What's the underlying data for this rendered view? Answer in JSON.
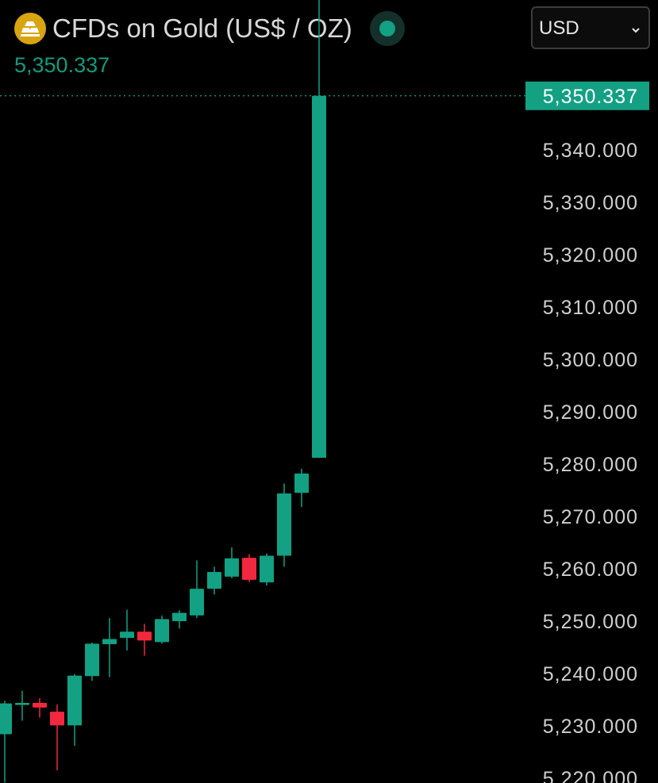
{
  "instrument": {
    "title": "CFDs on Gold (US$ / OZ)",
    "icon": "gold-bars-icon",
    "current_price": "5,350.337",
    "status": "market-open-dot"
  },
  "currency": {
    "selected": "USD"
  },
  "colors": {
    "up": "#13a083",
    "down": "#f2283f",
    "background": "#000000",
    "axis_text": "#cfcfcf",
    "gold": "#d9a412"
  },
  "chart_data": {
    "type": "candlestick",
    "price_axis": {
      "ticks": [
        5340,
        5330,
        5320,
        5310,
        5300,
        5290,
        5280,
        5270,
        5260,
        5250,
        5240,
        5230,
        5220
      ],
      "tick_labels": [
        "5,340.000",
        "5,330.000",
        "5,320.000",
        "5,310.000",
        "5,300.000",
        "5,290.000",
        "5,280.000",
        "5,270.000",
        "5,260.000",
        "5,250.000",
        "5,240.000",
        "5,230.000",
        "5,220.000"
      ],
      "ylim": [
        5219.5,
        5357.5
      ]
    },
    "last_price": 5350.337,
    "last_price_label": "5,350.337",
    "candles": [
      {
        "open": 5228.4,
        "high": 5234.8,
        "low": 5219.2,
        "close": 5234.3
      },
      {
        "open": 5234.0,
        "high": 5236.7,
        "low": 5231.0,
        "close": 5234.4
      },
      {
        "open": 5234.4,
        "high": 5235.3,
        "low": 5231.6,
        "close": 5233.5
      },
      {
        "open": 5232.7,
        "high": 5234.1,
        "low": 5221.5,
        "close": 5230.1
      },
      {
        "open": 5230.1,
        "high": 5239.9,
        "low": 5226.2,
        "close": 5239.6
      },
      {
        "open": 5239.5,
        "high": 5245.9,
        "low": 5238.6,
        "close": 5245.7
      },
      {
        "open": 5245.6,
        "high": 5250.6,
        "low": 5239.3,
        "close": 5246.6
      },
      {
        "open": 5246.8,
        "high": 5252.2,
        "low": 5244.4,
        "close": 5248.0
      },
      {
        "open": 5248.0,
        "high": 5249.5,
        "low": 5243.4,
        "close": 5246.3
      },
      {
        "open": 5246.0,
        "high": 5251.1,
        "low": 5245.7,
        "close": 5250.4
      },
      {
        "open": 5250.0,
        "high": 5252.1,
        "low": 5248.6,
        "close": 5251.6
      },
      {
        "open": 5251.1,
        "high": 5261.6,
        "low": 5250.6,
        "close": 5256.2
      },
      {
        "open": 5256.2,
        "high": 5260.4,
        "low": 5255.1,
        "close": 5259.4
      },
      {
        "open": 5258.5,
        "high": 5264.1,
        "low": 5258.2,
        "close": 5262.0
      },
      {
        "open": 5262.1,
        "high": 5262.8,
        "low": 5257.5,
        "close": 5257.9
      },
      {
        "open": 5257.4,
        "high": 5262.9,
        "low": 5256.8,
        "close": 5262.5
      },
      {
        "open": 5262.5,
        "high": 5276.3,
        "low": 5260.4,
        "close": 5274.4
      },
      {
        "open": 5274.5,
        "high": 5279.1,
        "low": 5271.8,
        "close": 5278.2
      },
      {
        "open": 5281.2,
        "high": 5380.0,
        "low": 5281.2,
        "close": 5350.337
      }
    ]
  }
}
